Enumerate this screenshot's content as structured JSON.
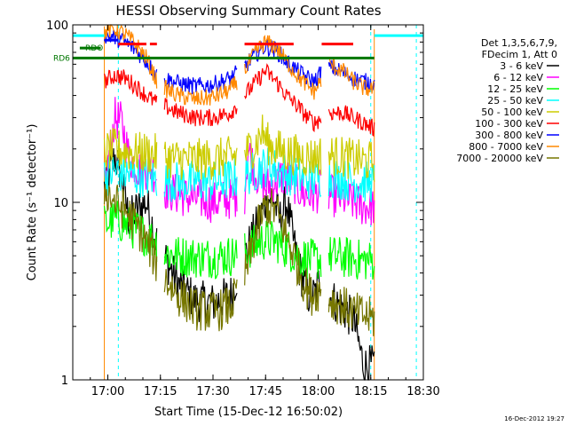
{
  "chart_data": {
    "type": "line",
    "title": "HESSI Observing Summary Count Rates",
    "xlabel": "Start Time (15-Dec-12 16:50:02)",
    "ylabel": "Count Rate (s⁻¹ detector⁻¹)",
    "x_unit": "minutes after 16:50:02",
    "xlim": [
      0,
      100
    ],
    "ylim": [
      1,
      100
    ],
    "yscale": "log",
    "x_ticks": [
      {
        "x": 10,
        "label": "17:00"
      },
      {
        "x": 25,
        "label": "17:15"
      },
      {
        "x": 40,
        "label": "17:30"
      },
      {
        "x": 55,
        "label": "17:45"
      },
      {
        "x": 70,
        "label": "18:00"
      },
      {
        "x": 85,
        "label": "18:15"
      },
      {
        "x": 100,
        "label": "18:30"
      }
    ],
    "y_ticks": [
      {
        "y": 1,
        "label": "1"
      },
      {
        "y": 10,
        "label": "10"
      },
      {
        "y": 100,
        "label": "100"
      }
    ],
    "legend_header": [
      "Det 1,3,5,6,7,9,",
      "FDecim 1, Att 0"
    ],
    "legend_placement": "right",
    "timestamp": "16-Dec-2012 19:27",
    "gaps": [
      [
        24,
        26
      ],
      [
        47,
        49
      ],
      [
        71,
        73
      ]
    ],
    "obs_window": [
      9,
      86
    ],
    "series": [
      {
        "name": "3 - 6 keV",
        "color": "#000000",
        "x": [
          9,
          12,
          14,
          16,
          18,
          21,
          24,
          26,
          30,
          35,
          40,
          45,
          49,
          52,
          55,
          57,
          59,
          61,
          63,
          65,
          67,
          69,
          71,
          73,
          77,
          80,
          83,
          86
        ],
        "y": [
          12,
          18,
          14,
          8,
          9,
          10,
          6,
          5,
          3.5,
          2.8,
          2.7,
          3.0,
          5,
          7,
          10,
          11,
          8,
          10,
          6,
          4,
          3,
          3,
          4,
          3,
          2.5,
          2.2,
          1.2,
          1.2
        ]
      },
      {
        "name": "6 - 12 keV",
        "color": "#ff00ff",
        "x": [
          9,
          12,
          14,
          16,
          18,
          20,
          22,
          24,
          26,
          30,
          35,
          40,
          45,
          49,
          50,
          52,
          55,
          57,
          60,
          63,
          66,
          69,
          71,
          73,
          77,
          80,
          83,
          86
        ],
        "y": [
          12,
          30,
          28,
          18,
          16,
          15,
          16,
          14,
          12,
          11,
          10.5,
          10,
          10.5,
          11,
          20,
          15,
          12,
          13,
          14,
          13,
          11,
          11,
          12,
          11,
          10.5,
          10,
          9.5,
          9.5
        ]
      },
      {
        "name": "12 - 25 keV",
        "color": "#00ff00",
        "x": [
          9,
          12,
          15,
          18,
          21,
          24,
          26,
          30,
          35,
          40,
          45,
          49,
          52,
          55,
          58,
          61,
          64,
          67,
          69,
          71,
          73,
          77,
          80,
          83,
          86
        ],
        "y": [
          7.5,
          8.0,
          7.5,
          7.0,
          6.5,
          6.0,
          5.2,
          5.0,
          4.9,
          4.9,
          5.0,
          5.2,
          5.8,
          6.2,
          6.0,
          5.5,
          5.0,
          4.8,
          4.7,
          4.8,
          5.0,
          4.9,
          4.8,
          4.7,
          4.7
        ]
      },
      {
        "name": "25 - 50 keV",
        "color": "#00ffff",
        "x": [
          9,
          12,
          15,
          18,
          21,
          24,
          26,
          30,
          35,
          40,
          45,
          49,
          52,
          55,
          58,
          61,
          64,
          67,
          69,
          71,
          73,
          77,
          80,
          83,
          86
        ],
        "y": [
          14,
          15,
          14.5,
          14,
          14,
          13.5,
          13.5,
          13,
          13,
          13,
          13.5,
          14,
          15,
          16,
          15.5,
          14.5,
          14,
          13.5,
          13.5,
          14,
          14,
          13.5,
          13,
          13,
          13
        ]
      },
      {
        "name": "50 - 100 keV",
        "color": "#cccc00",
        "x": [
          9,
          12,
          15,
          18,
          21,
          24,
          26,
          30,
          35,
          40,
          45,
          49,
          52,
          54,
          56,
          58,
          61,
          64,
          67,
          69,
          71,
          73,
          77,
          80,
          83,
          86
        ],
        "y": [
          19,
          20,
          19.5,
          19,
          19,
          18.5,
          18,
          17.5,
          17.5,
          17.5,
          18,
          19,
          21,
          25,
          21,
          20,
          19,
          18.5,
          18,
          18,
          18.5,
          18.5,
          18,
          17.5,
          17,
          17
        ]
      },
      {
        "name": "100 - 300 keV",
        "color": "#ff0000",
        "x": [
          9,
          12,
          15,
          18,
          21,
          24,
          26,
          30,
          35,
          40,
          45,
          49,
          52,
          55,
          58,
          61,
          64,
          67,
          69,
          71,
          73,
          77,
          80,
          83,
          86
        ],
        "y": [
          48,
          52,
          50,
          45,
          40,
          36,
          35,
          32,
          30,
          30,
          32,
          40,
          47,
          55,
          48,
          40,
          35,
          30,
          28,
          30,
          32,
          32,
          30,
          28,
          26
        ]
      },
      {
        "name": "300 - 800 keV",
        "color": "#0000ff",
        "x": [
          9,
          12,
          15,
          18,
          21,
          24,
          26,
          30,
          35,
          40,
          45,
          49,
          52,
          55,
          58,
          61,
          64,
          67,
          69,
          71,
          73,
          77,
          80,
          83,
          86
        ],
        "y": [
          88,
          85,
          80,
          72,
          62,
          52,
          50,
          47,
          45,
          46,
          50,
          58,
          68,
          76,
          72,
          62,
          55,
          50,
          48,
          55,
          58,
          54,
          50,
          48,
          47
        ]
      },
      {
        "name": "800 - 7000 keV",
        "color": "#ff8800",
        "x": [
          9,
          12,
          15,
          18,
          21,
          24,
          26,
          30,
          35,
          40,
          45,
          49,
          52,
          55,
          58,
          61,
          64,
          67,
          69,
          71,
          73,
          77,
          80,
          83,
          86
        ],
        "y": [
          92,
          95,
          88,
          78,
          65,
          48,
          44,
          40,
          38,
          39,
          43,
          55,
          70,
          80,
          75,
          62,
          52,
          45,
          42,
          50,
          60,
          55,
          48,
          44,
          43
        ]
      },
      {
        "name": "7000 - 20000 keV",
        "color": "#777700",
        "x": [
          9,
          12,
          15,
          18,
          21,
          24,
          26,
          30,
          35,
          40,
          45,
          49,
          52,
          55,
          58,
          61,
          64,
          66,
          68,
          70,
          72,
          74,
          77,
          80,
          83,
          86
        ],
        "y": [
          12,
          10,
          9,
          7.5,
          6.0,
          4.5,
          3.8,
          3.0,
          2.5,
          2.4,
          2.6,
          3.8,
          6.5,
          9.5,
          9.0,
          6.5,
          4.5,
          3.5,
          3.0,
          3.2,
          3.0,
          2.8,
          2.6,
          2.4,
          2.3,
          2.2
        ]
      }
    ],
    "reference_lines": [
      {
        "name": "RD6",
        "color": "#007700",
        "y": 65,
        "x1": 0,
        "x2": 86
      },
      {
        "name": "RDO",
        "color": "#007700",
        "y": 74,
        "x1": 2,
        "x2": 8
      }
    ],
    "saa_bars": [
      {
        "color": "#00ffff",
        "y": 87,
        "x1": 0,
        "x2": 9
      },
      {
        "color": "#00ffff",
        "y": 87,
        "x1": 86,
        "x2": 100
      }
    ],
    "flag_marks": [
      {
        "color": "#ff0000",
        "y": 78,
        "segments": [
          [
            13,
            21
          ],
          [
            22,
            24
          ],
          [
            49,
            63
          ],
          [
            71,
            80
          ]
        ]
      },
      {
        "color": "#0000ff",
        "y": 82,
        "segments": [
          [
            9,
            13
          ]
        ]
      }
    ],
    "dashed_markers": [
      {
        "color": "#00ffff",
        "x": 13
      },
      {
        "color": "#00ffff",
        "x": 85
      },
      {
        "color": "#00ffff",
        "x": 98
      }
    ],
    "edge_markers": [
      {
        "color": "#ff8800",
        "x": 9
      },
      {
        "color": "#ff8800",
        "x": 86
      }
    ]
  }
}
